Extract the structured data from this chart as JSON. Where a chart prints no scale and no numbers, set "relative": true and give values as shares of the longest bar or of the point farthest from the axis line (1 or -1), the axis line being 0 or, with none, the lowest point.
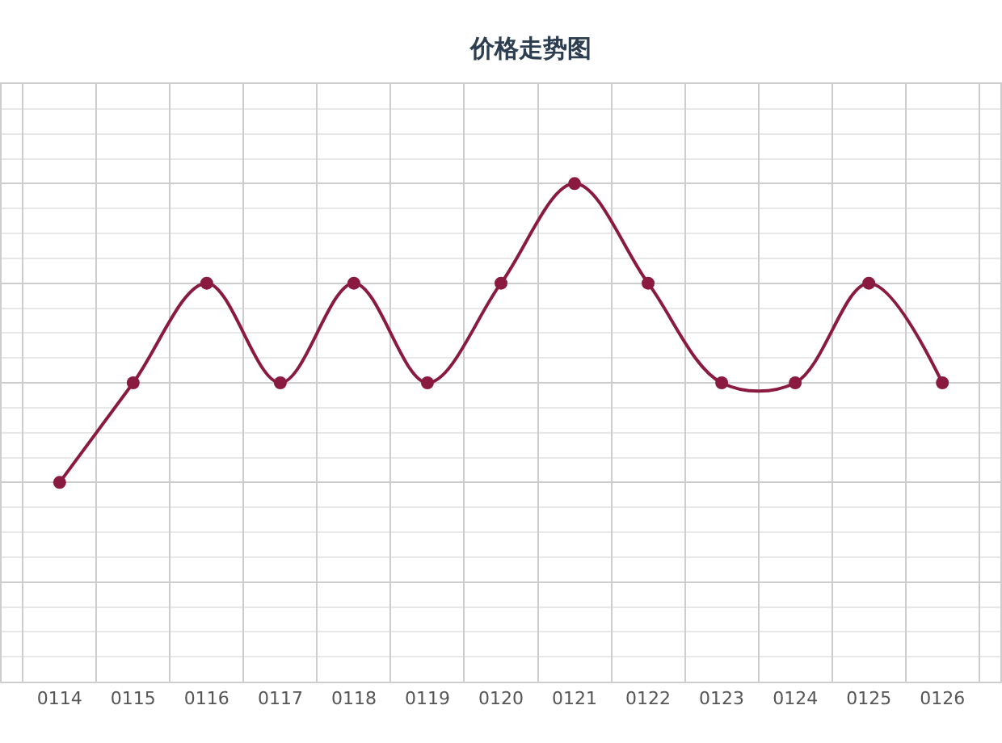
{
  "chart_data": {
    "type": "line",
    "title": "价格走势图",
    "categories": [
      "0114",
      "0115",
      "0116",
      "0117",
      "0118",
      "0119",
      "0120",
      "0121",
      "0122",
      "0123",
      "0124",
      "0125",
      "0126"
    ],
    "values": [
      0.4,
      0.6,
      0.8,
      0.6,
      0.8,
      0.6,
      0.8,
      1,
      0.8,
      0.6,
      0.6,
      0.8,
      0.6
    ],
    "color": "#8b1a40",
    "relative": true,
    "grid": true,
    "marker": "circle",
    "line_style": "solid"
  }
}
